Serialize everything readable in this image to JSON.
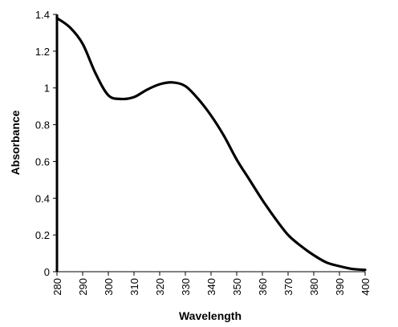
{
  "chart_data": {
    "type": "line",
    "title": "",
    "xlabel": "Wavelength",
    "ylabel": "Absorbance",
    "xlim": [
      280,
      400
    ],
    "ylim": [
      0,
      1.4
    ],
    "x_ticks": [
      "280",
      "290",
      "300",
      "310",
      "320",
      "330",
      "340",
      "350",
      "360",
      "370",
      "380",
      "390",
      "400"
    ],
    "y_ticks": [
      "0",
      "0.2",
      "0.4",
      "0.6",
      "0.8",
      "1",
      "1.2",
      "1.4"
    ],
    "grid": false,
    "legend": "none",
    "line_color": "#000000",
    "series": [
      {
        "x": [
          280,
          285,
          290,
          295,
          300,
          305,
          310,
          315,
          320,
          325,
          330,
          335,
          340,
          345,
          350,
          355,
          360,
          365,
          370,
          375,
          380,
          385,
          390,
          395,
          400
        ],
        "values": [
          1.38,
          1.33,
          1.24,
          1.08,
          0.96,
          0.94,
          0.95,
          0.99,
          1.02,
          1.03,
          1.01,
          0.94,
          0.85,
          0.74,
          0.61,
          0.5,
          0.39,
          0.29,
          0.2,
          0.14,
          0.09,
          0.05,
          0.03,
          0.015,
          0.01
        ]
      }
    ]
  }
}
